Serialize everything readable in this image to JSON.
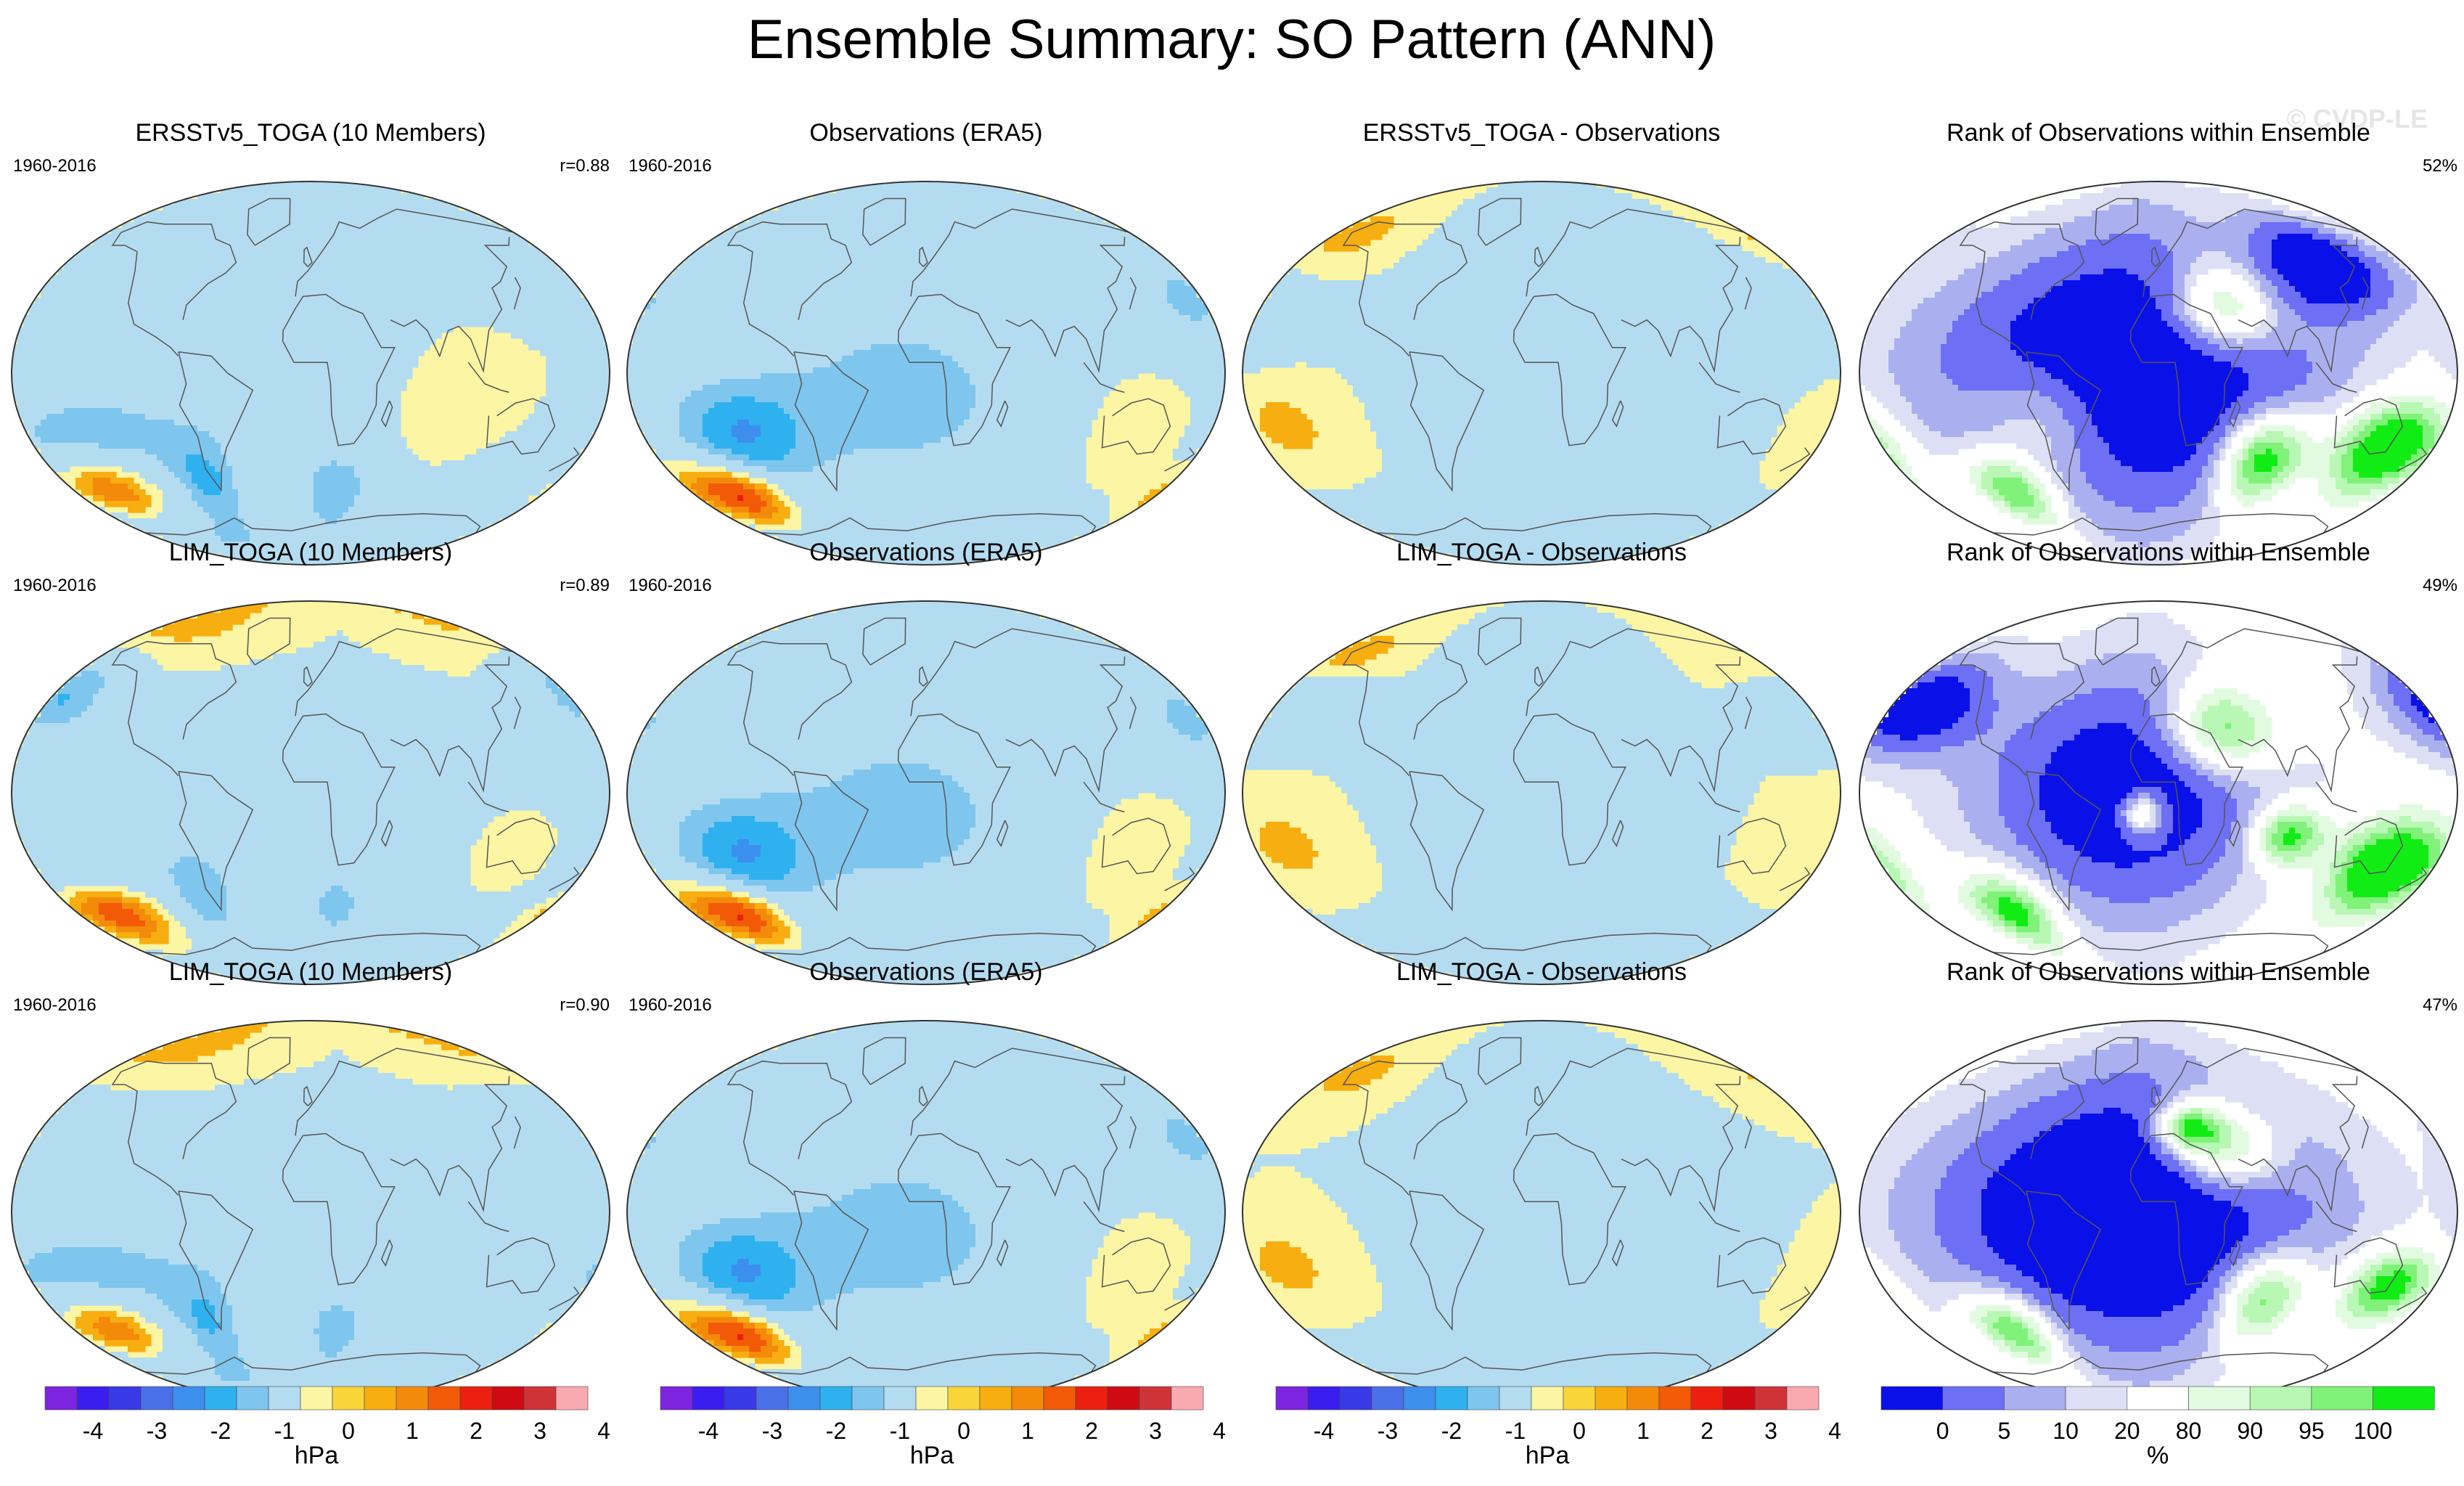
{
  "figure": {
    "title": "Ensemble Summary: SO Pattern (ANN)",
    "watermark": "© CVDP-LE"
  },
  "colors": {
    "ocean_base": "#f8f290",
    "map_edge": "#333333",
    "coast": "#555555",
    "contour_scale": [
      "#7d24e0",
      "#3a1ef0",
      "#3939e8",
      "#4a70e8",
      "#3d8fee",
      "#2fb1f0",
      "#7fc6ee",
      "#b4dcf0",
      "#fbf5a4",
      "#f9d53a",
      "#f7ae10",
      "#f48a0a",
      "#f25a08",
      "#ed1f10",
      "#d00a12",
      "#cf3338",
      "#f9aab0"
    ],
    "rank_scale": [
      "#0a10e8",
      "#6d6ff5",
      "#aab0ef",
      "#dde0f5",
      "#ffffff",
      "#e2fbe0",
      "#b8f7b4",
      "#80f27a",
      "#12ec15"
    ]
  },
  "colorbars": {
    "contour": {
      "ticks": [
        "-4",
        "-3",
        "-2",
        "-1",
        "0",
        "1",
        "2",
        "3",
        "4"
      ],
      "units": "hPa"
    },
    "rank": {
      "ticks": [
        "0",
        "5",
        "10",
        "20",
        "80",
        "90",
        "95",
        "100"
      ],
      "units": "%"
    }
  },
  "chart_data": [
    {
      "type": "heatmap",
      "kind": "model",
      "title": "ERSSTv5_TOGA (10 Members)",
      "period": "1960-2016",
      "stat": "r=0.88",
      "blobs": [
        {
          "lon": -150,
          "lat": -55,
          "amp": 2.5,
          "lonw": 26,
          "latw": 10
        },
        {
          "lon": -75,
          "lat": -50,
          "amp": -1.1,
          "lonw": 14,
          "latw": 12
        },
        {
          "lon": -20,
          "lat": -10,
          "amp": -0.7,
          "lonw": 70,
          "latw": 30
        },
        {
          "lon": 20,
          "lat": -55,
          "amp": -1.2,
          "lonw": 18,
          "latw": 12
        },
        {
          "lon": -155,
          "lat": -40,
          "amp": -1.2,
          "lonw": 60,
          "latw": 30
        },
        {
          "lon": 175,
          "lat": 35,
          "amp": -0.7,
          "lonw": 30,
          "latw": 12
        },
        {
          "lon": 100,
          "lat": -15,
          "amp": 0.8,
          "lonw": 40,
          "latw": 20
        },
        {
          "lon": -60,
          "lat": -80,
          "amp": -0.7,
          "lonw": 110,
          "latw": 12
        }
      ]
    },
    {
      "type": "heatmap",
      "kind": "obs",
      "title": "Observations (ERA5)",
      "period": "1960-2016",
      "stat": "",
      "blobs": [
        {
          "lon": -145,
          "lat": -57,
          "amp": 2.6,
          "lonw": 25,
          "latw": 10
        },
        {
          "lon": -120,
          "lat": -30,
          "amp": -1.6,
          "lonw": 30,
          "latw": 18
        },
        {
          "lon": -30,
          "lat": -20,
          "amp": -0.8,
          "lonw": 80,
          "latw": 30
        },
        {
          "lon": 170,
          "lat": 35,
          "amp": -1.1,
          "lonw": 25,
          "latw": 18
        },
        {
          "lon": -10,
          "lat": 10,
          "amp": -0.6,
          "lonw": 60,
          "latw": 40
        },
        {
          "lon": 130,
          "lat": -25,
          "amp": 0.6,
          "lonw": 20,
          "latw": 15
        },
        {
          "lon": -60,
          "lat": -80,
          "amp": -0.7,
          "lonw": 110,
          "latw": 12
        }
      ]
    },
    {
      "type": "heatmap",
      "kind": "diff",
      "title": "ERSSTv5_TOGA - Observations",
      "period": "",
      "stat": "",
      "blobs": [
        {
          "lon": -160,
          "lat": -25,
          "amp": 0.9,
          "lonw": 16,
          "latw": 10
        },
        {
          "lon": -160,
          "lat": 65,
          "amp": 0.9,
          "lonw": 20,
          "latw": 8
        },
        {
          "lon": 120,
          "lat": 30,
          "amp": -0.6,
          "lonw": 40,
          "latw": 15
        },
        {
          "lon": -20,
          "lat": 20,
          "amp": -0.7,
          "lonw": 30,
          "latw": 30
        },
        {
          "lon": 60,
          "lat": -10,
          "amp": -0.5,
          "lonw": 30,
          "latw": 20
        },
        {
          "lon": -80,
          "lat": -80,
          "amp": -0.5,
          "lonw": 60,
          "latw": 10
        }
      ]
    },
    {
      "type": "heatmap",
      "kind": "rank",
      "title": "Rank of Observations within Ensemble",
      "period": "",
      "stat": "52%",
      "blobs": [
        {
          "lon": -20,
          "lat": 0,
          "amp": 1.0,
          "lonw": 80,
          "latw": 45
        },
        {
          "lon": 120,
          "lat": 50,
          "amp": 0.8,
          "lonw": 30,
          "latw": 15
        },
        {
          "lon": 150,
          "lat": -35,
          "amp": -1.0,
          "lonw": 25,
          "latw": 15
        },
        {
          "lon": 70,
          "lat": -40,
          "amp": -1.0,
          "lonw": 20,
          "latw": 15
        },
        {
          "lon": 40,
          "lat": 30,
          "amp": -0.8,
          "lonw": 25,
          "latw": 15
        },
        {
          "lon": -110,
          "lat": -55,
          "amp": -0.8,
          "lonw": 20,
          "latw": 12
        },
        {
          "lon": -70,
          "lat": -20,
          "amp": -0.5,
          "lonw": 30,
          "latw": 20
        }
      ]
    },
    {
      "type": "heatmap",
      "kind": "model",
      "title": "LIM_TOGA (10 Members)",
      "period": "1960-2016",
      "stat": "r=0.89",
      "blobs": [
        {
          "lon": -150,
          "lat": -57,
          "amp": 2.8,
          "lonw": 26,
          "latw": 10
        },
        {
          "lon": -170,
          "lat": 45,
          "amp": -1.5,
          "lonw": 22,
          "latw": 14
        },
        {
          "lon": 135,
          "lat": -30,
          "amp": 0.9,
          "lonw": 22,
          "latw": 15
        },
        {
          "lon": -75,
          "lat": -50,
          "amp": -0.9,
          "lonw": 14,
          "latw": 12
        },
        {
          "lon": -150,
          "lat": 80,
          "amp": 0.8,
          "lonw": 60,
          "latw": 10
        },
        {
          "lon": -20,
          "lat": -10,
          "amp": -0.7,
          "lonw": 60,
          "latw": 30
        },
        {
          "lon": 20,
          "lat": -55,
          "amp": -1.0,
          "lonw": 18,
          "latw": 12
        },
        {
          "lon": -155,
          "lat": -40,
          "amp": -1.0,
          "lonw": 60,
          "latw": 30
        }
      ]
    },
    {
      "type": "heatmap",
      "kind": "obs",
      "title": "Observations (ERA5)",
      "period": "1960-2016",
      "stat": "",
      "blobs": [
        {
          "lon": -145,
          "lat": -57,
          "amp": 2.6,
          "lonw": 25,
          "latw": 10
        },
        {
          "lon": -120,
          "lat": -30,
          "amp": -1.6,
          "lonw": 30,
          "latw": 18
        },
        {
          "lon": -30,
          "lat": -20,
          "amp": -0.8,
          "lonw": 80,
          "latw": 30
        },
        {
          "lon": 170,
          "lat": 35,
          "amp": -1.1,
          "lonw": 25,
          "latw": 18
        },
        {
          "lon": -10,
          "lat": 10,
          "amp": -0.6,
          "lonw": 60,
          "latw": 40
        },
        {
          "lon": 130,
          "lat": -25,
          "amp": 0.6,
          "lonw": 20,
          "latw": 15
        },
        {
          "lon": -60,
          "lat": -80,
          "amp": -0.7,
          "lonw": 110,
          "latw": 12
        }
      ]
    },
    {
      "type": "heatmap",
      "kind": "diff",
      "title": "LIM_TOGA - Observations",
      "period": "",
      "stat": "",
      "blobs": [
        {
          "lon": -160,
          "lat": -25,
          "amp": 0.9,
          "lonw": 16,
          "latw": 10
        },
        {
          "lon": -160,
          "lat": 45,
          "amp": -0.8,
          "lonw": 18,
          "latw": 10
        },
        {
          "lon": -160,
          "lat": 65,
          "amp": 0.9,
          "lonw": 20,
          "latw": 8
        },
        {
          "lon": -20,
          "lat": 20,
          "amp": -0.5,
          "lonw": 30,
          "latw": 30
        },
        {
          "lon": -60,
          "lat": -80,
          "amp": -0.5,
          "lonw": 60,
          "latw": 10
        }
      ]
    },
    {
      "type": "heatmap",
      "kind": "rank",
      "title": "Rank of Observations within Ensemble",
      "period": "",
      "stat": "49%",
      "blobs": [
        {
          "lon": -20,
          "lat": 0,
          "amp": 0.8,
          "lonw": 60,
          "latw": 40
        },
        {
          "lon": -160,
          "lat": 40,
          "amp": 0.8,
          "lonw": 30,
          "latw": 15
        },
        {
          "lon": 150,
          "lat": -35,
          "amp": -1.0,
          "lonw": 25,
          "latw": 15
        },
        {
          "lon": 40,
          "lat": 30,
          "amp": -0.8,
          "lonw": 25,
          "latw": 15
        },
        {
          "lon": -10,
          "lat": -10,
          "amp": -0.8,
          "lonw": 10,
          "latw": 8
        },
        {
          "lon": -110,
          "lat": -55,
          "amp": -0.8,
          "lonw": 20,
          "latw": 12
        },
        {
          "lon": 80,
          "lat": -20,
          "amp": -0.8,
          "lonw": 15,
          "latw": 10
        }
      ]
    },
    {
      "type": "heatmap",
      "kind": "model",
      "title": "LIM_TOGA (10 Members)",
      "period": "1960-2016",
      "stat": "r=0.90",
      "blobs": [
        {
          "lon": -150,
          "lat": -55,
          "amp": 2.5,
          "lonw": 26,
          "latw": 10
        },
        {
          "lon": -75,
          "lat": -50,
          "amp": -1.0,
          "lonw": 14,
          "latw": 12
        },
        {
          "lon": -150,
          "lat": 80,
          "amp": 0.8,
          "lonw": 60,
          "latw": 10
        },
        {
          "lon": -20,
          "lat": -10,
          "amp": -0.7,
          "lonw": 70,
          "latw": 30
        },
        {
          "lon": 20,
          "lat": -55,
          "amp": -1.0,
          "lonw": 18,
          "latw": 12
        },
        {
          "lon": -155,
          "lat": -40,
          "amp": -1.2,
          "lonw": 60,
          "latw": 30
        },
        {
          "lon": 175,
          "lat": 35,
          "amp": -0.7,
          "lonw": 30,
          "latw": 12
        },
        {
          "lon": -60,
          "lat": -80,
          "amp": -0.7,
          "lonw": 110,
          "latw": 12
        }
      ]
    },
    {
      "type": "heatmap",
      "kind": "obs",
      "title": "Observations (ERA5)",
      "period": "1960-2016",
      "stat": "",
      "blobs": [
        {
          "lon": -145,
          "lat": -57,
          "amp": 2.6,
          "lonw": 25,
          "latw": 10
        },
        {
          "lon": -120,
          "lat": -30,
          "amp": -1.6,
          "lonw": 30,
          "latw": 18
        },
        {
          "lon": -30,
          "lat": -20,
          "amp": -0.8,
          "lonw": 80,
          "latw": 30
        },
        {
          "lon": 170,
          "lat": 35,
          "amp": -1.1,
          "lonw": 25,
          "latw": 18
        },
        {
          "lon": -10,
          "lat": 10,
          "amp": -0.6,
          "lonw": 60,
          "latw": 40
        },
        {
          "lon": 130,
          "lat": -25,
          "amp": 0.6,
          "lonw": 20,
          "latw": 15
        },
        {
          "lon": -60,
          "lat": -80,
          "amp": -0.7,
          "lonw": 110,
          "latw": 12
        }
      ]
    },
    {
      "type": "heatmap",
      "kind": "diff",
      "title": "LIM_TOGA - Observations",
      "period": "",
      "stat": "",
      "blobs": [
        {
          "lon": -160,
          "lat": -25,
          "amp": 0.9,
          "lonw": 16,
          "latw": 10
        },
        {
          "lon": -160,
          "lat": 65,
          "amp": 0.9,
          "lonw": 20,
          "latw": 8
        },
        {
          "lon": -20,
          "lat": 20,
          "amp": -0.5,
          "lonw": 30,
          "latw": 30
        },
        {
          "lon": 60,
          "lat": -10,
          "amp": -0.5,
          "lonw": 30,
          "latw": 20
        },
        {
          "lon": -80,
          "lat": -80,
          "amp": -0.5,
          "lonw": 60,
          "latw": 10
        }
      ]
    },
    {
      "type": "heatmap",
      "kind": "rank",
      "title": "Rank of Observations within Ensemble",
      "period": "",
      "stat": "47%",
      "blobs": [
        {
          "lon": -20,
          "lat": 0,
          "amp": 1.0,
          "lonw": 80,
          "latw": 45
        },
        {
          "lon": 150,
          "lat": -35,
          "amp": -0.8,
          "lonw": 20,
          "latw": 12
        },
        {
          "lon": 70,
          "lat": -40,
          "amp": -0.8,
          "lonw": 20,
          "latw": 15
        },
        {
          "lon": 40,
          "lat": 30,
          "amp": -0.8,
          "lonw": 25,
          "latw": 15
        },
        {
          "lon": -110,
          "lat": -55,
          "amp": -0.8,
          "lonw": 20,
          "latw": 12
        },
        {
          "lon": 20,
          "lat": 40,
          "amp": -0.8,
          "lonw": 15,
          "latw": 8
        }
      ]
    }
  ]
}
